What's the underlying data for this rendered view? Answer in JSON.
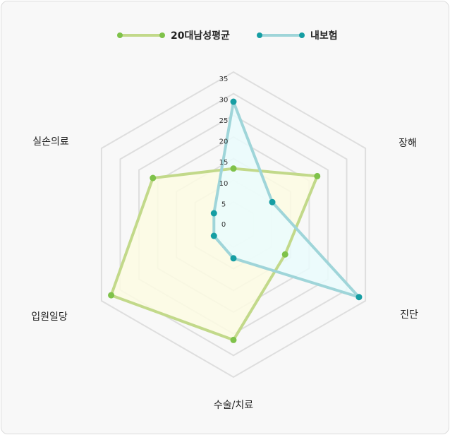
{
  "chart_data": {
    "type": "radar",
    "title": "",
    "axes": [
      "장해",
      "진단",
      "수술/치료",
      "입원일당",
      "실손의료"
    ],
    "top_axis_label": "",
    "ticks": [
      "0",
      "5",
      "10",
      "15",
      "20",
      "25",
      "30",
      "35"
    ],
    "range": [
      0,
      35
    ],
    "categories": [
      "",
      "장해",
      "진단",
      "수술/치료",
      "입원일당",
      "실손의료"
    ],
    "series": [
      {
        "name": "20대남성평균",
        "color": "#c2d98a",
        "point_color": "#7fc24a",
        "fill": "#fdfbe3",
        "values": [
          9,
          20,
          10,
          25,
          32,
          19
        ]
      },
      {
        "name": "내보험",
        "color": "#9fd5d9",
        "point_color": "#169ea3",
        "fill": "#eafcfd",
        "values": [
          27,
          6,
          33,
          3,
          0,
          0
        ]
      }
    ],
    "legend_position": "top",
    "grid": true
  }
}
